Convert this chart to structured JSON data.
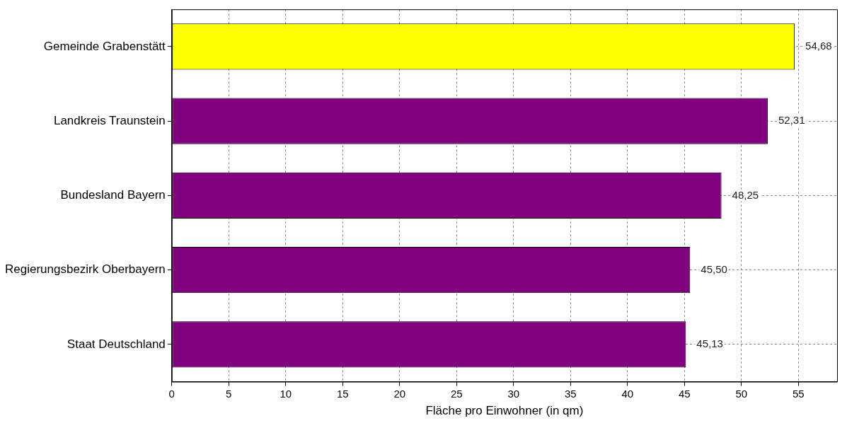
{
  "chart_data": {
    "type": "bar",
    "orientation": "horizontal",
    "xlabel": "Fläche pro Einwohner (in qm)",
    "categories": [
      "Gemeinde Grabenstätt",
      "Landkreis Traunstein",
      "Bundesland Bayern",
      "Regierungsbezirk Oberbayern",
      "Staat Deutschland"
    ],
    "values": [
      54.68,
      52.31,
      48.25,
      45.5,
      45.13
    ],
    "value_labels": [
      "54,68",
      "52,31",
      "48,25",
      "45,50",
      "45,13"
    ],
    "colors": [
      "#ffff00",
      "#800080",
      "#800080",
      "#800080",
      "#800080"
    ],
    "xlim": [
      0,
      58.4
    ],
    "xticks": [
      0,
      5,
      10,
      15,
      20,
      25,
      30,
      35,
      40,
      45,
      50,
      55
    ],
    "grid": true,
    "legend": false
  }
}
